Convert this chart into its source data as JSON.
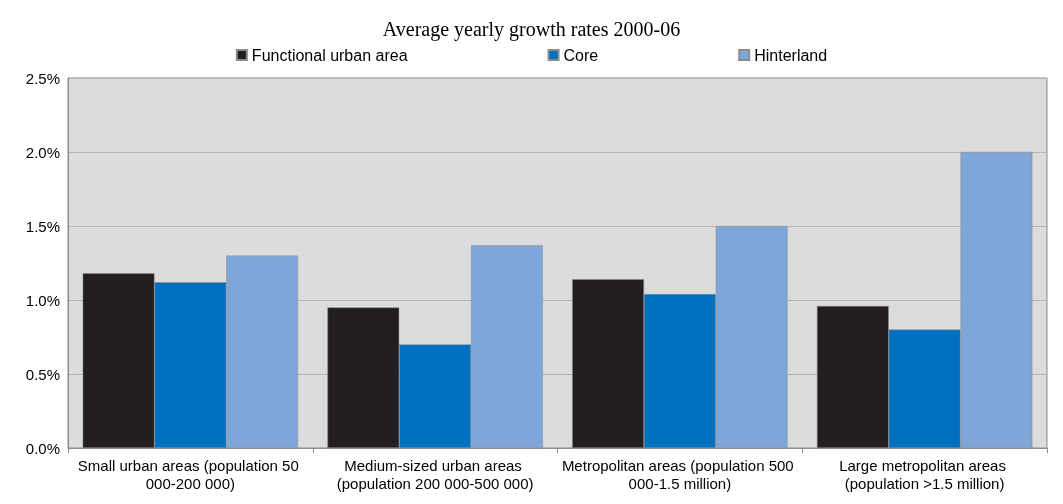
{
  "chart_data": {
    "type": "bar",
    "title": "Average yearly growth rates 2000-06",
    "categories": [
      "Small urban areas (population 50 000-200 000)",
      "Medium-sized urban areas (population 200 000-500 000)",
      "Metropolitan areas (population 500 000-1.5 million)",
      "Large metropolitan areas (population >1.5 million)"
    ],
    "series": [
      {
        "name": "Functional urban area",
        "color": "#231f20",
        "values": [
          1.18,
          0.95,
          1.14,
          0.96
        ]
      },
      {
        "name": "Core",
        "color": "#0070c0",
        "values": [
          1.12,
          0.7,
          1.04,
          0.8
        ]
      },
      {
        "name": "Hinterland",
        "color": "#7ea6d8",
        "values": [
          1.3,
          1.37,
          1.5,
          2.0
        ]
      }
    ],
    "ylim": [
      0,
      2.5
    ],
    "yticks": [
      {
        "value": 0,
        "label": "0.0%"
      },
      {
        "value": 0.5,
        "label": "0.5%"
      },
      {
        "value": 1,
        "label": "1.0%"
      },
      {
        "value": 1.5,
        "label": "1.5%"
      },
      {
        "value": 2,
        "label": "2.0%"
      },
      {
        "value": 2.5,
        "label": "2.5%"
      }
    ],
    "grid": "y",
    "legend": "top"
  }
}
